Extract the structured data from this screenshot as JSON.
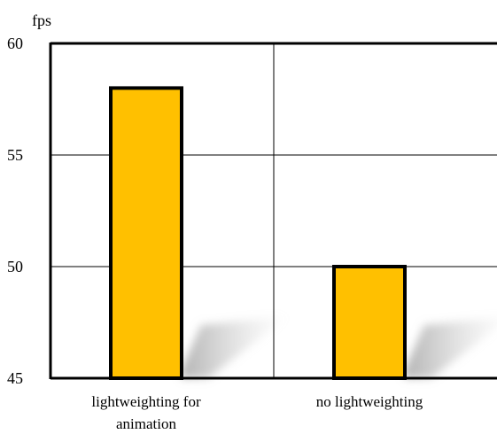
{
  "chart_data": {
    "type": "bar",
    "title": "",
    "xlabel": "",
    "ylabel": "fps",
    "ylim": [
      45,
      60
    ],
    "yticks": [
      45,
      50,
      55,
      60
    ],
    "grid": true,
    "categories": [
      {
        "lines": [
          "lightweighting for",
          "animation"
        ]
      },
      {
        "lines": [
          "no lightweighting"
        ]
      }
    ],
    "values": [
      58,
      50
    ],
    "bar_color": "#FFC000",
    "outline_color": "#000000"
  }
}
